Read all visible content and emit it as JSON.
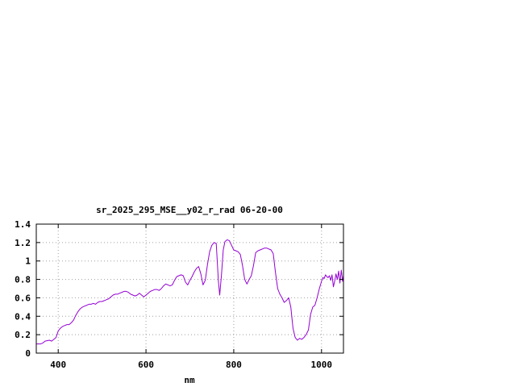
{
  "chart_data": {
    "type": "line",
    "title": "sr_2025_295_MSE__y02_r_rad 06-20-00",
    "xlabel": "nm",
    "ylabel": "",
    "xlim": [
      350,
      1050
    ],
    "ylim": [
      0,
      1.4
    ],
    "x_ticks": [
      400,
      600,
      800,
      1000
    ],
    "x_tick_labels": [
      "400",
      "600",
      "800",
      "1000"
    ],
    "y_ticks": [
      0,
      0.2,
      0.4,
      0.6,
      0.8,
      1,
      1.2,
      1.4
    ],
    "y_tick_labels": [
      "0",
      "0.2",
      "0.4",
      "0.6",
      "0.8",
      "1",
      "1.2",
      "1.4"
    ],
    "grid": true,
    "grid_style": "dotted",
    "legend": "none",
    "series": [
      {
        "color": "#9400d3",
        "points": [
          [
            350,
            0.1
          ],
          [
            360,
            0.1
          ],
          [
            365,
            0.11
          ],
          [
            370,
            0.13
          ],
          [
            380,
            0.14
          ],
          [
            385,
            0.13
          ],
          [
            390,
            0.15
          ],
          [
            395,
            0.17
          ],
          [
            400,
            0.24
          ],
          [
            405,
            0.27
          ],
          [
            410,
            0.29
          ],
          [
            415,
            0.3
          ],
          [
            420,
            0.31
          ],
          [
            425,
            0.31
          ],
          [
            430,
            0.33
          ],
          [
            435,
            0.36
          ],
          [
            440,
            0.41
          ],
          [
            445,
            0.45
          ],
          [
            450,
            0.48
          ],
          [
            455,
            0.5
          ],
          [
            460,
            0.51
          ],
          [
            465,
            0.52
          ],
          [
            470,
            0.53
          ],
          [
            475,
            0.53
          ],
          [
            480,
            0.54
          ],
          [
            485,
            0.53
          ],
          [
            490,
            0.55
          ],
          [
            495,
            0.56
          ],
          [
            500,
            0.56
          ],
          [
            505,
            0.57
          ],
          [
            510,
            0.58
          ],
          [
            515,
            0.59
          ],
          [
            520,
            0.61
          ],
          [
            525,
            0.63
          ],
          [
            530,
            0.64
          ],
          [
            535,
            0.64
          ],
          [
            540,
            0.65
          ],
          [
            545,
            0.66
          ],
          [
            550,
            0.67
          ],
          [
            555,
            0.67
          ],
          [
            560,
            0.66
          ],
          [
            565,
            0.64
          ],
          [
            570,
            0.63
          ],
          [
            575,
            0.62
          ],
          [
            580,
            0.63
          ],
          [
            585,
            0.65
          ],
          [
            590,
            0.63
          ],
          [
            595,
            0.61
          ],
          [
            600,
            0.63
          ],
          [
            605,
            0.65
          ],
          [
            610,
            0.67
          ],
          [
            615,
            0.68
          ],
          [
            620,
            0.69
          ],
          [
            625,
            0.69
          ],
          [
            630,
            0.68
          ],
          [
            635,
            0.7
          ],
          [
            640,
            0.73
          ],
          [
            645,
            0.75
          ],
          [
            650,
            0.74
          ],
          [
            655,
            0.73
          ],
          [
            660,
            0.74
          ],
          [
            665,
            0.79
          ],
          [
            670,
            0.83
          ],
          [
            675,
            0.84
          ],
          [
            680,
            0.85
          ],
          [
            685,
            0.84
          ],
          [
            690,
            0.77
          ],
          [
            695,
            0.74
          ],
          [
            700,
            0.79
          ],
          [
            705,
            0.83
          ],
          [
            710,
            0.88
          ],
          [
            715,
            0.92
          ],
          [
            720,
            0.94
          ],
          [
            725,
            0.86
          ],
          [
            730,
            0.74
          ],
          [
            735,
            0.79
          ],
          [
            740,
            0.96
          ],
          [
            745,
            1.1
          ],
          [
            750,
            1.17
          ],
          [
            755,
            1.2
          ],
          [
            760,
            1.19
          ],
          [
            765,
            0.78
          ],
          [
            768,
            0.63
          ],
          [
            772,
            0.85
          ],
          [
            776,
            1.12
          ],
          [
            780,
            1.21
          ],
          [
            785,
            1.23
          ],
          [
            790,
            1.22
          ],
          [
            795,
            1.17
          ],
          [
            800,
            1.12
          ],
          [
            805,
            1.11
          ],
          [
            810,
            1.1
          ],
          [
            815,
            1.07
          ],
          [
            820,
            0.95
          ],
          [
            825,
            0.8
          ],
          [
            830,
            0.75
          ],
          [
            835,
            0.8
          ],
          [
            840,
            0.84
          ],
          [
            845,
            0.95
          ],
          [
            850,
            1.09
          ],
          [
            855,
            1.11
          ],
          [
            860,
            1.12
          ],
          [
            865,
            1.13
          ],
          [
            870,
            1.14
          ],
          [
            875,
            1.14
          ],
          [
            880,
            1.13
          ],
          [
            885,
            1.12
          ],
          [
            890,
            1.08
          ],
          [
            895,
            0.88
          ],
          [
            900,
            0.7
          ],
          [
            905,
            0.64
          ],
          [
            910,
            0.6
          ],
          [
            915,
            0.55
          ],
          [
            920,
            0.57
          ],
          [
            925,
            0.6
          ],
          [
            930,
            0.5
          ],
          [
            935,
            0.27
          ],
          [
            940,
            0.17
          ],
          [
            945,
            0.14
          ],
          [
            950,
            0.16
          ],
          [
            955,
            0.15
          ],
          [
            960,
            0.17
          ],
          [
            965,
            0.2
          ],
          [
            970,
            0.25
          ],
          [
            975,
            0.42
          ],
          [
            980,
            0.5
          ],
          [
            985,
            0.52
          ],
          [
            990,
            0.6
          ],
          [
            995,
            0.7
          ],
          [
            1000,
            0.78
          ],
          [
            1003,
            0.82
          ],
          [
            1006,
            0.81
          ],
          [
            1009,
            0.85
          ],
          [
            1012,
            0.83
          ],
          [
            1015,
            0.82
          ],
          [
            1018,
            0.84
          ],
          [
            1021,
            0.79
          ],
          [
            1024,
            0.85
          ],
          [
            1027,
            0.72
          ],
          [
            1030,
            0.78
          ],
          [
            1033,
            0.86
          ],
          [
            1036,
            0.8
          ],
          [
            1039,
            0.89
          ],
          [
            1042,
            0.76
          ],
          [
            1045,
            0.9
          ],
          [
            1048,
            0.78
          ],
          [
            1050,
            0.84
          ]
        ]
      }
    ]
  }
}
